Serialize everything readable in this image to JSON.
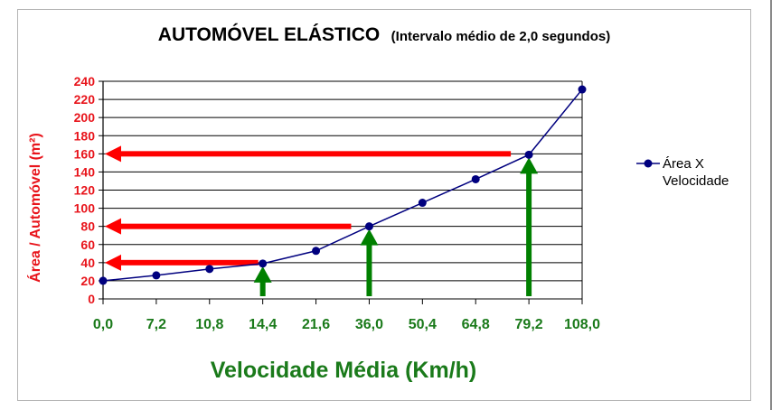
{
  "chart_data": {
    "type": "line",
    "title": "AUTOMÓVEL ELÁSTICO",
    "subtitle": "(Intervalo médio de 2,0 segundos)",
    "xlabel": "Velocidade Média (Km/h)",
    "ylabel": "Área / Automóvel (m²)",
    "categories": [
      "0,0",
      "7,2",
      "10,8",
      "14,4",
      "21,6",
      "36,0",
      "50,4",
      "64,8",
      "79,2",
      "108,0"
    ],
    "series": [
      {
        "name": "Área X Velocidade",
        "values": [
          20,
          26,
          33,
          39,
          53,
          80,
          106,
          132,
          159,
          231
        ]
      }
    ],
    "ylim": [
      0,
      240
    ],
    "yticks": [
      "0",
      "20",
      "40",
      "60",
      "80",
      "100",
      "120",
      "140",
      "160",
      "180",
      "200",
      "220",
      "240"
    ],
    "grid": true,
    "legend": "right",
    "annotations": {
      "green_arrows_at": [
        "14,4",
        "36,0",
        "79,2"
      ],
      "red_arrows_at": [
        40,
        80,
        160
      ]
    },
    "colors": {
      "series": "#00007f",
      "y_axis_text": "#e8141b",
      "x_axis_text": "#1a7a1a",
      "red_arrow": "#ff0000",
      "green_arrow": "#008000"
    }
  }
}
